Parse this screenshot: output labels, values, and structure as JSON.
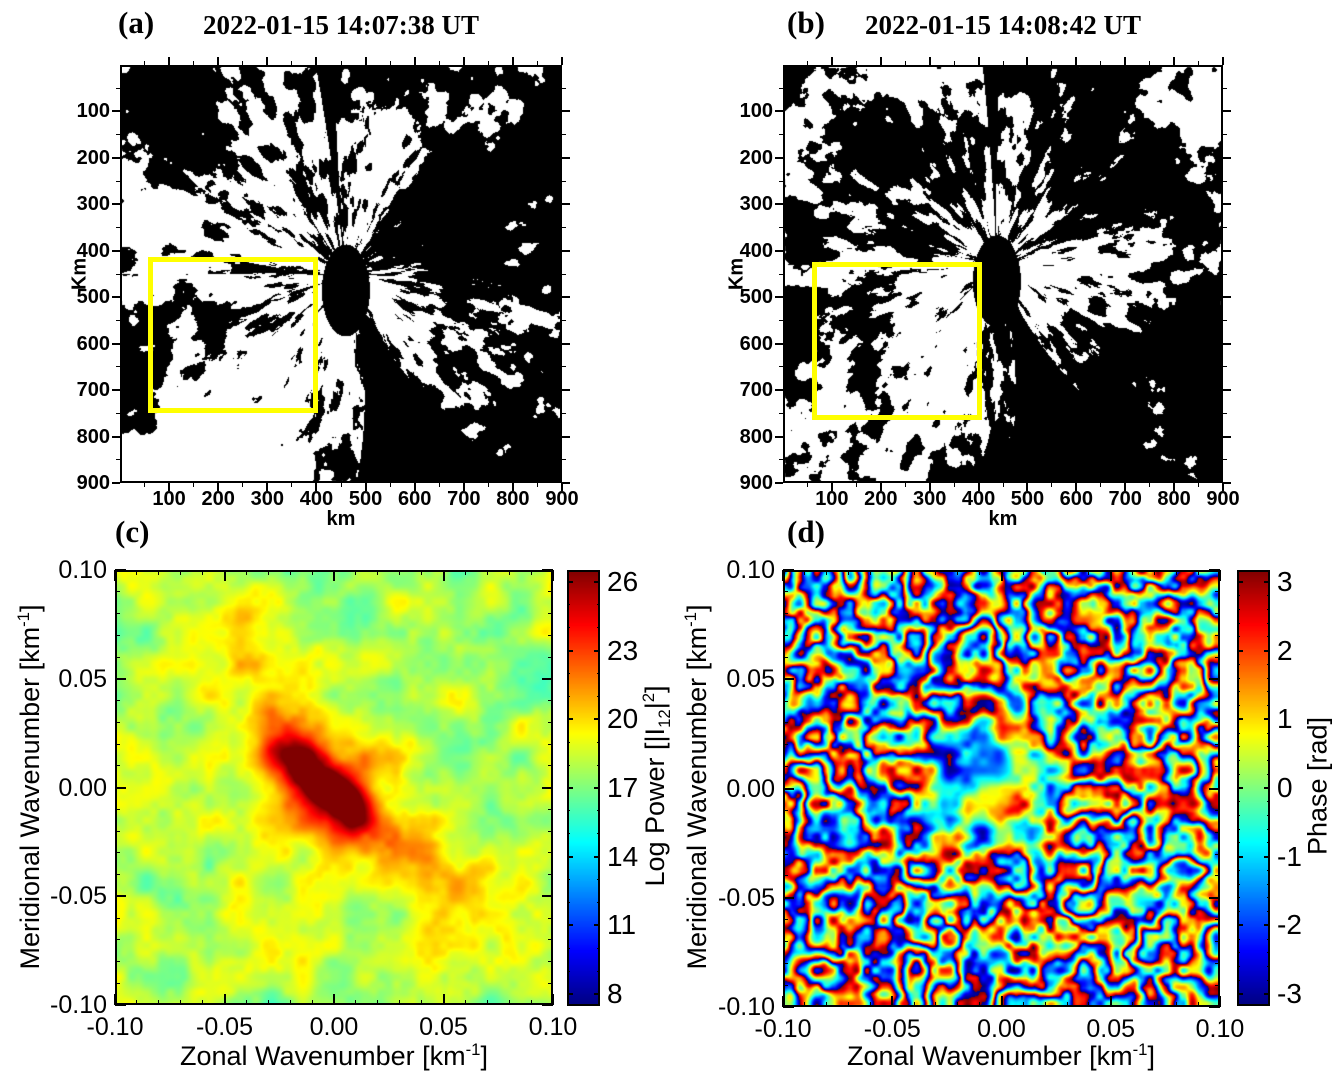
{
  "colors": {
    "background": "#ffffff",
    "frame": "#000000",
    "highlight_box": "#ffff00"
  },
  "panels": {
    "a": {
      "label": "(a)",
      "title": "2022-01-15 14:07:38 UT",
      "xlabel": "km",
      "ylabel": "Km",
      "xtick_labels": [
        "100",
        "200",
        "300",
        "400",
        "500",
        "600",
        "700",
        "800",
        "900"
      ],
      "ytick_labels": [
        "100",
        "200",
        "300",
        "400",
        "500",
        "600",
        "700",
        "800",
        "900"
      ]
    },
    "b": {
      "label": "(b)",
      "title": "2022-01-15 14:08:42 UT",
      "xlabel": "km",
      "ylabel": "Km",
      "xtick_labels": [
        "100",
        "200",
        "300",
        "400",
        "500",
        "600",
        "700",
        "800",
        "900"
      ],
      "ytick_labels": [
        "100",
        "200",
        "300",
        "400",
        "500",
        "600",
        "700",
        "800",
        "900"
      ]
    },
    "c": {
      "label": "(c)",
      "xlabel_parts": {
        "pre": "Zonal Wavenumber [km",
        "sup": "-1",
        "post": "]"
      },
      "ylabel_parts": {
        "pre": "Meridional Wavenumber [km",
        "sup": "-1",
        "post": "]"
      },
      "xtick_labels": [
        "-0.10",
        "-0.05",
        "0.00",
        "0.05",
        "0.10"
      ],
      "ytick_labels": [
        "0.10",
        "0.05",
        "0.00",
        "-0.05",
        "-0.10"
      ],
      "colorbar": {
        "tick_labels": [
          "8",
          "11",
          "14",
          "17",
          "20",
          "23",
          "26"
        ],
        "label_parts": {
          "p1": "Log Power [|I",
          "sub": "12",
          "p2": "|",
          "sup": "2",
          "p3": "]"
        }
      }
    },
    "d": {
      "label": "(d)",
      "xlabel_parts": {
        "pre": "Zonal Wavenumber [km",
        "sup": "-1",
        "post": "]"
      },
      "ylabel_parts": {
        "pre": "Meridional Wavenumber [km",
        "sup": "-1",
        "post": "]"
      },
      "xtick_labels": [
        "-0.10",
        "-0.05",
        "0.00",
        "0.05",
        "0.10"
      ],
      "ytick_labels": [
        "0.10",
        "0.05",
        "0.00",
        "-0.05",
        "-0.10"
      ],
      "colorbar": {
        "tick_labels": [
          "-3",
          "-2",
          "-1",
          "0",
          "1",
          "2",
          "3"
        ],
        "label": "Phase [rad]"
      }
    }
  },
  "chart_data": [
    {
      "id": "a",
      "type": "heatmap",
      "subtype": "thresholded_allsky_airglow_image",
      "title": "2022-01-15 14:07:38 UT",
      "xlabel": "km",
      "ylabel": "Km",
      "xlim": [
        0,
        900
      ],
      "ylim": [
        0,
        900
      ],
      "y_axis_direction": "downward",
      "xticks": [
        100,
        200,
        300,
        400,
        500,
        600,
        700,
        800,
        900
      ],
      "yticks": [
        100,
        200,
        300,
        400,
        500,
        600,
        700,
        800,
        900
      ],
      "minor_tick_step_km": 50,
      "palette": [
        "#000000",
        "#ffffff"
      ],
      "highlight_box": {
        "color": "#ffff00",
        "x_km": [
          57,
          403
        ],
        "y_km": [
          413,
          750
        ]
      },
      "description": "Binary black/white all-sky airglow projection; streaks radiate from about (460 km, 465 km); a thin dark wedge runs to the top edge, a broad dark wedge runs from centre toward the bottom, and a solid dark patch sits at the convergence point."
    },
    {
      "id": "b",
      "type": "heatmap",
      "subtype": "thresholded_allsky_airglow_image",
      "title": "2022-01-15 14:08:42 UT",
      "xlabel": "km",
      "ylabel": "Km",
      "xlim": [
        0,
        900
      ],
      "ylim": [
        0,
        900
      ],
      "y_axis_direction": "downward",
      "xticks": [
        100,
        200,
        300,
        400,
        500,
        600,
        700,
        800,
        900
      ],
      "yticks": [
        100,
        200,
        300,
        400,
        500,
        600,
        700,
        800,
        900
      ],
      "minor_tick_step_km": 50,
      "palette": [
        "#000000",
        "#ffffff"
      ],
      "highlight_box": {
        "color": "#ffff00",
        "x_km": [
          59,
          407
        ],
        "y_km": [
          424,
          765
        ]
      },
      "description": "Same scene 64 s later; slightly more dark area on the right half and below centre."
    },
    {
      "id": "c",
      "type": "heatmap",
      "quantity": "log cross-spectral power",
      "xlabel": "Zonal Wavenumber [km⁻¹]",
      "ylabel": "Meridional Wavenumber [km⁻¹]",
      "xlim": [
        -0.1,
        0.1
      ],
      "ylim": [
        -0.1,
        0.1
      ],
      "xticks": [
        -0.1,
        -0.05,
        0.0,
        0.05,
        0.1
      ],
      "yticks": [
        -0.1,
        -0.05,
        0.0,
        0.05,
        0.1
      ],
      "minor_tick_step": 0.01,
      "colorbar": {
        "label": "Log Power [|I₁₂|²]",
        "range": [
          8,
          26
        ],
        "ticks": [
          8,
          11,
          14,
          17,
          20,
          23,
          26
        ],
        "minor_tick_step": 1,
        "colormap": "jet"
      },
      "field_summary": {
        "background_level_range": [
          17,
          20
        ],
        "speckle_low_value": 15,
        "speckle_scale_km_inv": 0.005,
        "peak": {
          "value": 26,
          "location": [
            0.0,
            0.0
          ],
          "shape": "two dark-red lobes elongated NW-SE from about (-0.02, 0.012) to (0.02, -0.015)"
        },
        "halo": {
          "value_range": [
            21,
            23
          ],
          "extent_km_inv": 0.035
        },
        "warm_patch": {
          "value": 21,
          "location": [
            -0.05,
            0.07
          ]
        }
      }
    },
    {
      "id": "d",
      "type": "heatmap",
      "quantity": "cross-spectral phase",
      "xlabel": "Zonal Wavenumber [km⁻¹]",
      "ylabel": "Meridional Wavenumber [km⁻¹]",
      "xlim": [
        -0.1,
        0.1
      ],
      "ylim": [
        -0.1,
        0.1
      ],
      "xticks": [
        -0.1,
        -0.05,
        0.0,
        0.05,
        0.1
      ],
      "yticks": [
        -0.1,
        -0.05,
        0.0,
        0.05,
        0.1
      ],
      "minor_tick_step": 0.01,
      "colorbar": {
        "label": "Phase [rad]",
        "range": [
          -3,
          3
        ],
        "ticks": [
          -3,
          -2,
          -1,
          0,
          1,
          2,
          3
        ],
        "minor_tick_step": 0.2,
        "colormap": "jet"
      },
      "field_summary": {
        "pattern": "random mottled patches of wrapped phase (near ±π shown as dark red / dark blue) at ~0.01 km⁻¹ scale",
        "centre": "smoother cyan/green region around (0,0) with a small orange patch just below centre"
      }
    }
  ]
}
